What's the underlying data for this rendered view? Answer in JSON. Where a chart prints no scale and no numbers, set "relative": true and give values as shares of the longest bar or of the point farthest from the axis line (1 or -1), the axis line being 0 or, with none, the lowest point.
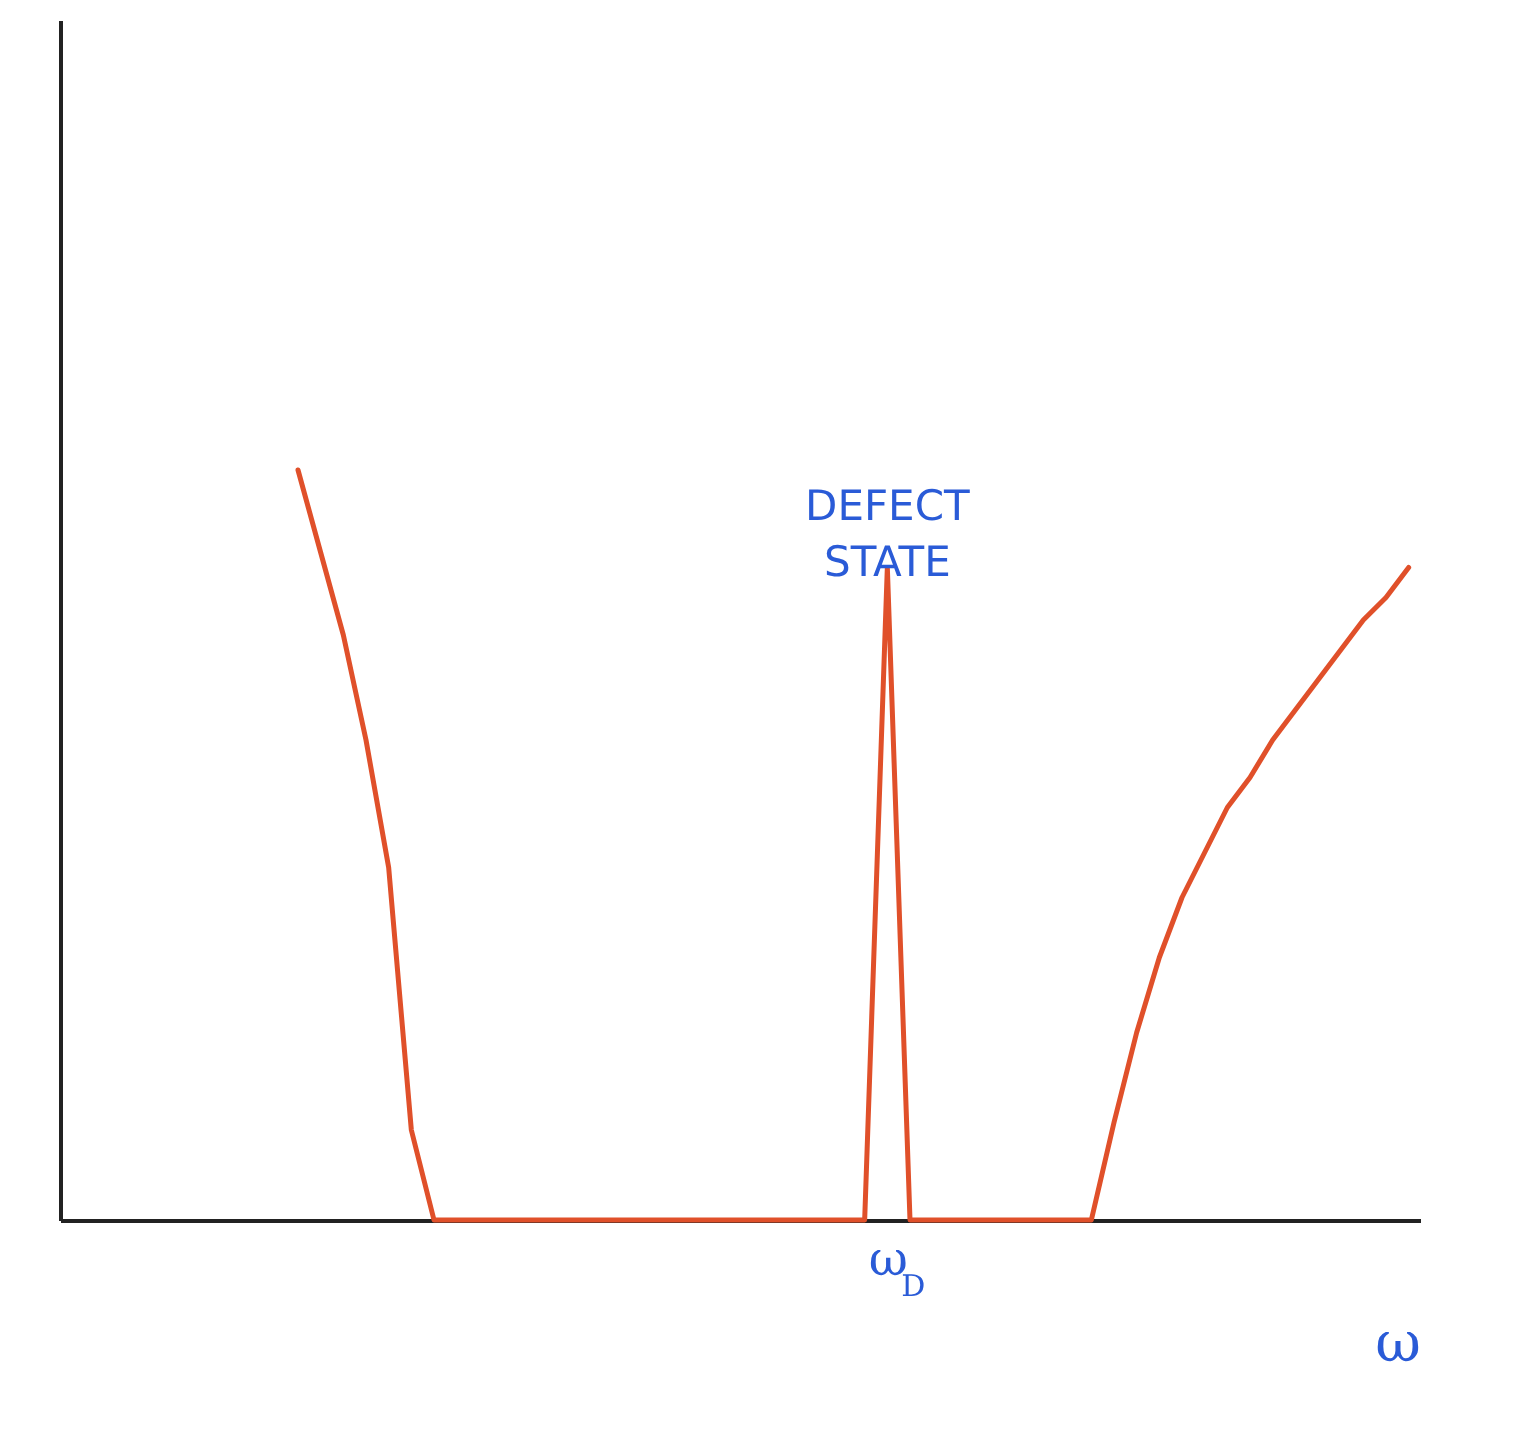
{
  "chart_data": {
    "type": "line",
    "relative": true,
    "xlabel": "ω",
    "categories": [
      null,
      null,
      null,
      null,
      null,
      null,
      null,
      null,
      null,
      null,
      null,
      null,
      null,
      null,
      null,
      null,
      null,
      null,
      null,
      null,
      null,
      null,
      null,
      null,
      null,
      null,
      null,
      null,
      null,
      null,
      null,
      null,
      null,
      null,
      null,
      null,
      "ω$_{D}$",
      null,
      null,
      null,
      null,
      null,
      null,
      null,
      null,
      null,
      null,
      null,
      null,
      null,
      null,
      null,
      null,
      null,
      null,
      null,
      null,
      null,
      null,
      null
    ],
    "series": [
      {
        "color": "#e0502a",
        "values": [
          null,
          null,
          null,
          null,
          null,
          null,
          null,
          null,
          null,
          null,
          1,
          0.89,
          0.78,
          0.64,
          0.47,
          0.12,
          0,
          0,
          0,
          0,
          0,
          0,
          0,
          0,
          0,
          0,
          0,
          0,
          0,
          0,
          0,
          0,
          0,
          0,
          0,
          0,
          0.87,
          0,
          0,
          0,
          0,
          0,
          0,
          0,
          0,
          0,
          0.13,
          0.25,
          0.35,
          0.43,
          0.49,
          0.55,
          0.59,
          0.64,
          0.68,
          0.72,
          0.76,
          0.8,
          0.83,
          0.87
        ]
      }
    ],
    "annotations": [
      {
        "text": "DEFECT STATE",
        "x": "ω$_{D}$",
        "y": 0.87
      }
    ]
  }
}
